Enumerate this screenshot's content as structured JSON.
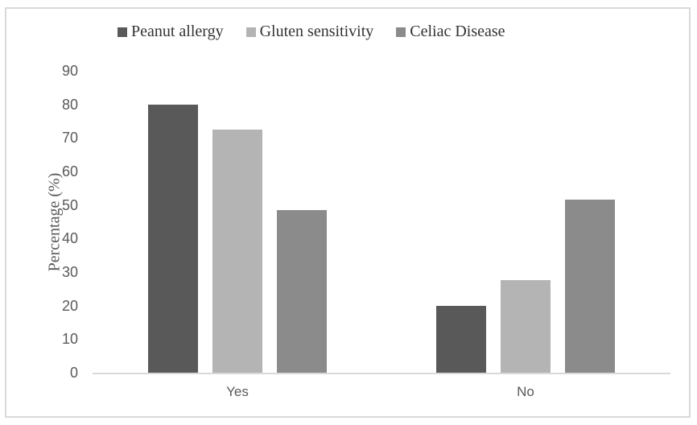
{
  "chart_data": {
    "type": "bar",
    "categories": [
      "Yes",
      "No"
    ],
    "series": [
      {
        "name": "Peanut allergy",
        "color": "#595959",
        "values": [
          80,
          20
        ]
      },
      {
        "name": "Gluten sensitivity",
        "color": "#b4b4b4",
        "values": [
          72.5,
          27.5
        ]
      },
      {
        "name": "Celiac Disease",
        "color": "#8b8b8b",
        "values": [
          48.5,
          51.5
        ]
      }
    ],
    "title": "",
    "xlabel": "",
    "ylabel": "Percentage (%)",
    "ylim": [
      0,
      90
    ],
    "yticks": [
      0,
      10,
      20,
      30,
      40,
      50,
      60,
      70,
      80,
      90
    ],
    "grid": false,
    "legend_position": "top"
  },
  "frame": {
    "background": "#ffffff",
    "border_color": "#d9d9d9",
    "axis_line_color": "#d9d9d9"
  }
}
